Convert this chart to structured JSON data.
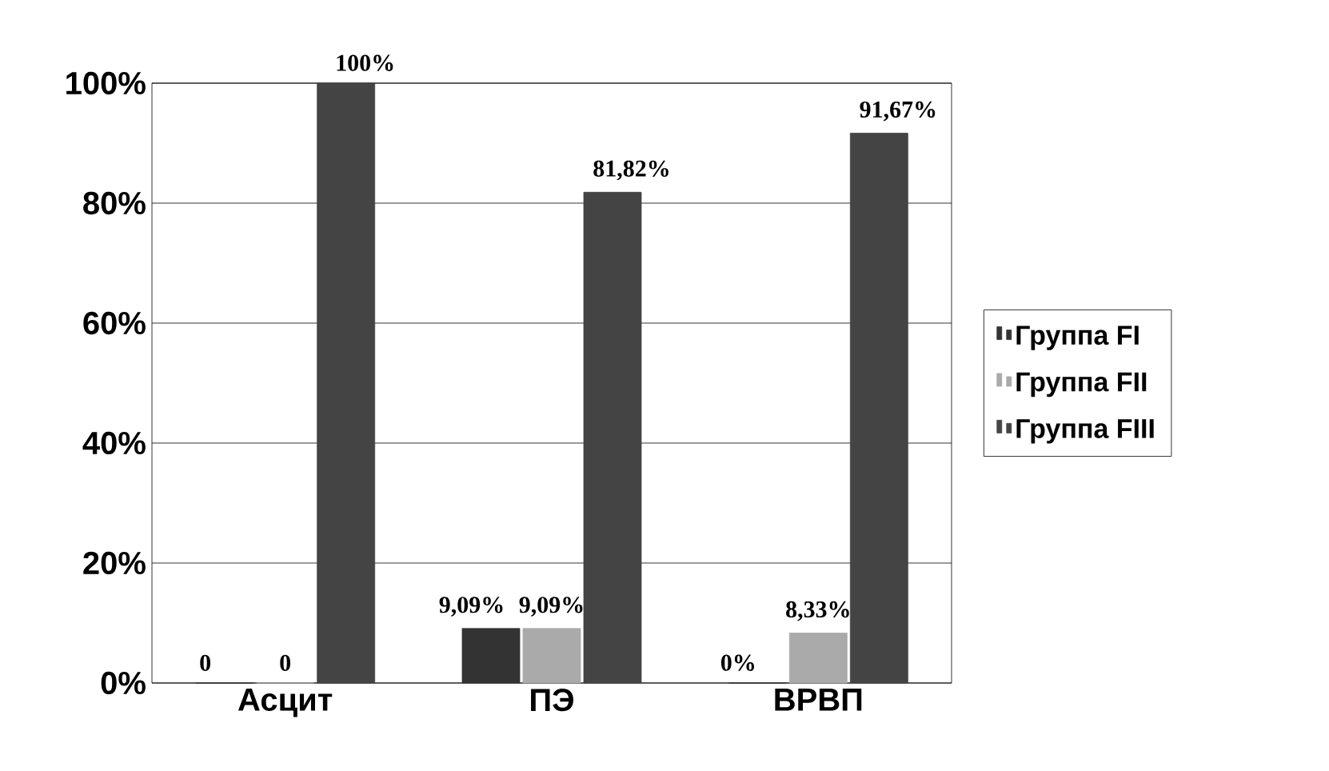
{
  "chart_data": {
    "type": "bar",
    "categories": [
      "Асцит",
      "ПЭ",
      "ВРВП"
    ],
    "series": [
      {
        "name": "Группа FI",
        "color": "#333333",
        "values": [
          0,
          9.09,
          0
        ],
        "value_labels": [
          "0",
          "9,09%",
          "0%"
        ]
      },
      {
        "name": "Группа FII",
        "color": "#aaaaaa",
        "values": [
          0,
          9.09,
          8.33
        ],
        "value_labels": [
          "0",
          "9,09%",
          "8,33%"
        ]
      },
      {
        "name": "Группа FIII",
        "color": "#444444",
        "values": [
          100,
          81.82,
          91.67
        ],
        "value_labels": [
          "100%",
          "81,82%",
          "91,67%"
        ]
      }
    ],
    "ylim": [
      0,
      100
    ],
    "yticks": [
      {
        "value": 0,
        "label": "0%"
      },
      {
        "value": 20,
        "label": "20%"
      },
      {
        "value": 40,
        "label": "40%"
      },
      {
        "value": 60,
        "label": "60%"
      },
      {
        "value": 80,
        "label": "80%"
      },
      {
        "value": 100,
        "label": "100%"
      }
    ],
    "grid": "y",
    "legend": "right"
  }
}
